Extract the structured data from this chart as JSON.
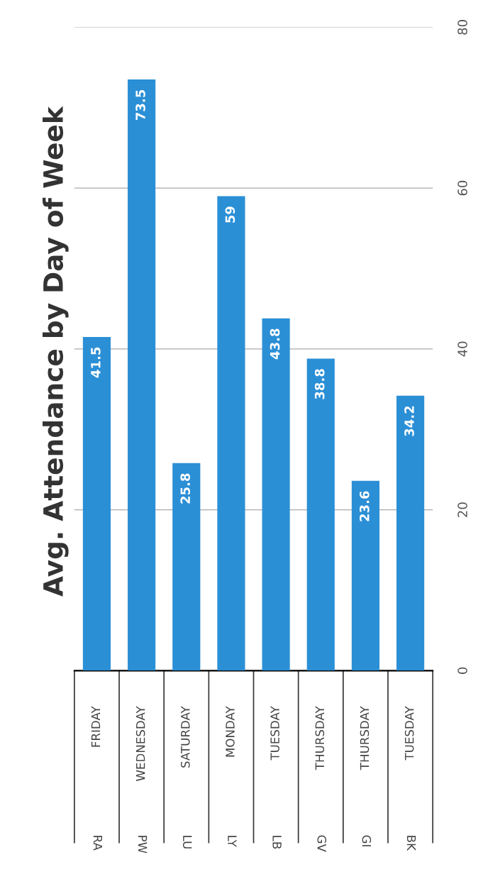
{
  "chart_data": {
    "type": "bar",
    "title": "Avg. Attendance by Day of Week",
    "categories": [
      "FRIDAY",
      "WEDNESDAY",
      "SATURDAY",
      "MONDAY",
      "TUESDAY",
      "THURSDAY",
      "THURSDAY",
      "TUESDAY"
    ],
    "annotations": [
      "RA",
      "PW",
      "LU",
      "LY",
      "LB",
      "GV",
      "GI",
      "BK"
    ],
    "values": [
      41.5,
      73.5,
      25.8,
      59,
      43.8,
      38.8,
      23.6,
      34.2
    ],
    "color": "#2b8fd6",
    "ylim": [
      0,
      80
    ],
    "yticks": [
      0,
      20,
      40,
      60,
      80
    ],
    "grid": "y",
    "data_labels": true,
    "legend": false
  }
}
